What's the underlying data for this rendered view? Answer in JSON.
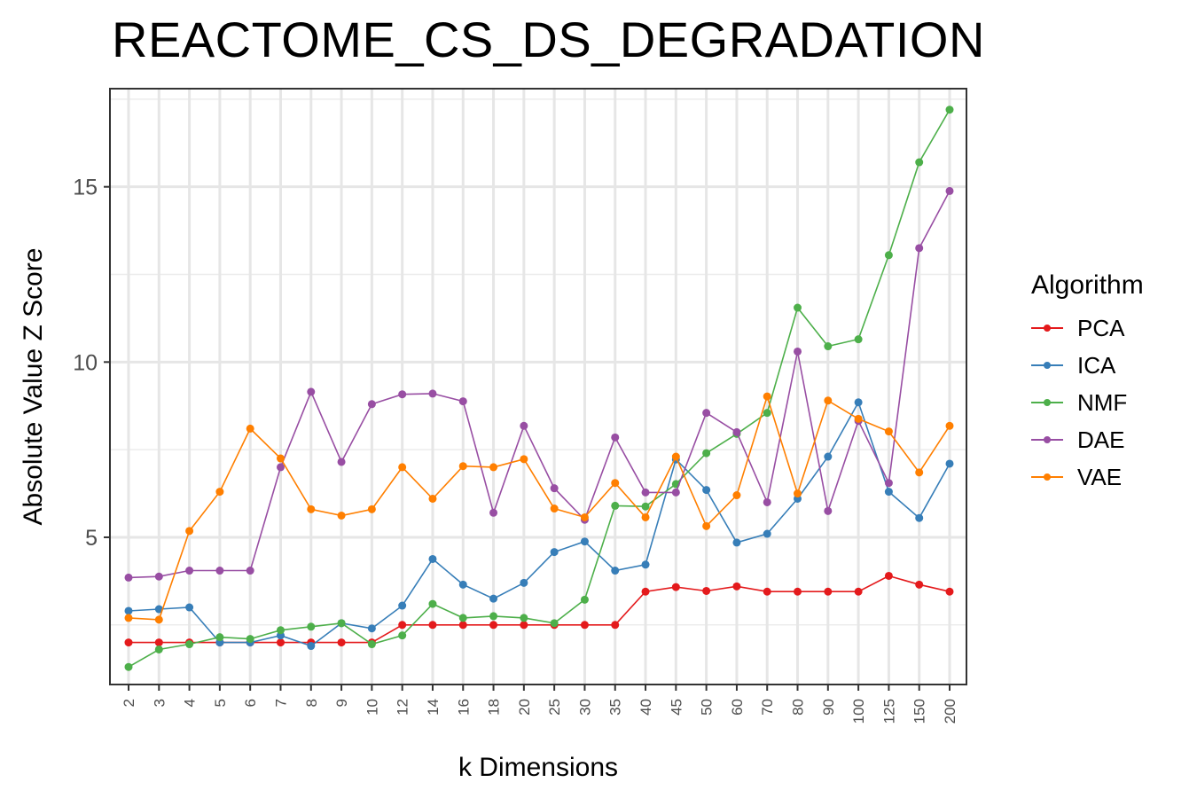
{
  "chart_data": {
    "type": "line",
    "title": "REACTOME_CS_DS_DEGRADATION",
    "xlabel": "k Dimensions",
    "ylabel": "Absolute Value Z Score",
    "categories": [
      "2",
      "3",
      "4",
      "5",
      "6",
      "7",
      "8",
      "9",
      "10",
      "12",
      "14",
      "16",
      "18",
      "20",
      "25",
      "30",
      "35",
      "40",
      "45",
      "50",
      "60",
      "70",
      "80",
      "90",
      "100",
      "125",
      "150",
      "200"
    ],
    "yticks": [
      5,
      10,
      15
    ],
    "ylim": [
      0.8,
      17.8
    ],
    "grid": true,
    "legend": {
      "title": "Algorithm",
      "position": "right"
    },
    "series": [
      {
        "name": "PCA",
        "color": "#e41a1c",
        "values": [
          2.0,
          2.0,
          2.0,
          2.0,
          2.0,
          2.0,
          2.0,
          2.0,
          2.0,
          2.5,
          2.5,
          2.5,
          2.5,
          2.5,
          2.5,
          2.5,
          2.5,
          3.45,
          3.58,
          3.47,
          3.6,
          3.45,
          3.45,
          3.45,
          3.45,
          3.9,
          3.65,
          3.45
        ]
      },
      {
        "name": "ICA",
        "color": "#377eb8",
        "values": [
          2.9,
          2.95,
          3.0,
          2.0,
          2.0,
          2.2,
          1.9,
          2.55,
          2.4,
          3.05,
          4.38,
          3.65,
          3.25,
          3.7,
          4.58,
          4.88,
          4.05,
          4.22,
          7.22,
          6.35,
          4.85,
          5.1,
          6.1,
          7.3,
          8.85,
          6.3,
          5.55,
          7.1
        ]
      },
      {
        "name": "NMF",
        "color": "#4daf4a",
        "values": [
          1.3,
          1.8,
          1.95,
          2.15,
          2.1,
          2.35,
          2.45,
          2.55,
          1.95,
          2.2,
          3.1,
          2.7,
          2.75,
          2.7,
          2.55,
          3.22,
          5.9,
          5.88,
          6.52,
          7.4,
          7.95,
          8.55,
          11.55,
          10.45,
          10.65,
          13.05,
          15.7,
          17.2
        ]
      },
      {
        "name": "DAE",
        "color": "#984ea3",
        "values": [
          3.85,
          3.88,
          4.05,
          4.05,
          4.05,
          7.0,
          9.15,
          7.15,
          8.8,
          9.08,
          9.1,
          8.88,
          5.7,
          8.18,
          6.4,
          5.5,
          7.85,
          6.28,
          6.28,
          8.55,
          8.0,
          6.0,
          10.3,
          5.75,
          8.32,
          6.55,
          13.25,
          14.88
        ]
      },
      {
        "name": "VAE",
        "color": "#ff7f00",
        "values": [
          2.7,
          2.65,
          5.18,
          6.3,
          8.1,
          7.25,
          5.8,
          5.62,
          5.8,
          7.0,
          6.1,
          7.03,
          7.0,
          7.23,
          5.82,
          5.57,
          6.55,
          5.57,
          7.3,
          5.32,
          6.2,
          9.02,
          6.25,
          8.9,
          8.38,
          8.02,
          6.85,
          8.18
        ]
      }
    ]
  }
}
